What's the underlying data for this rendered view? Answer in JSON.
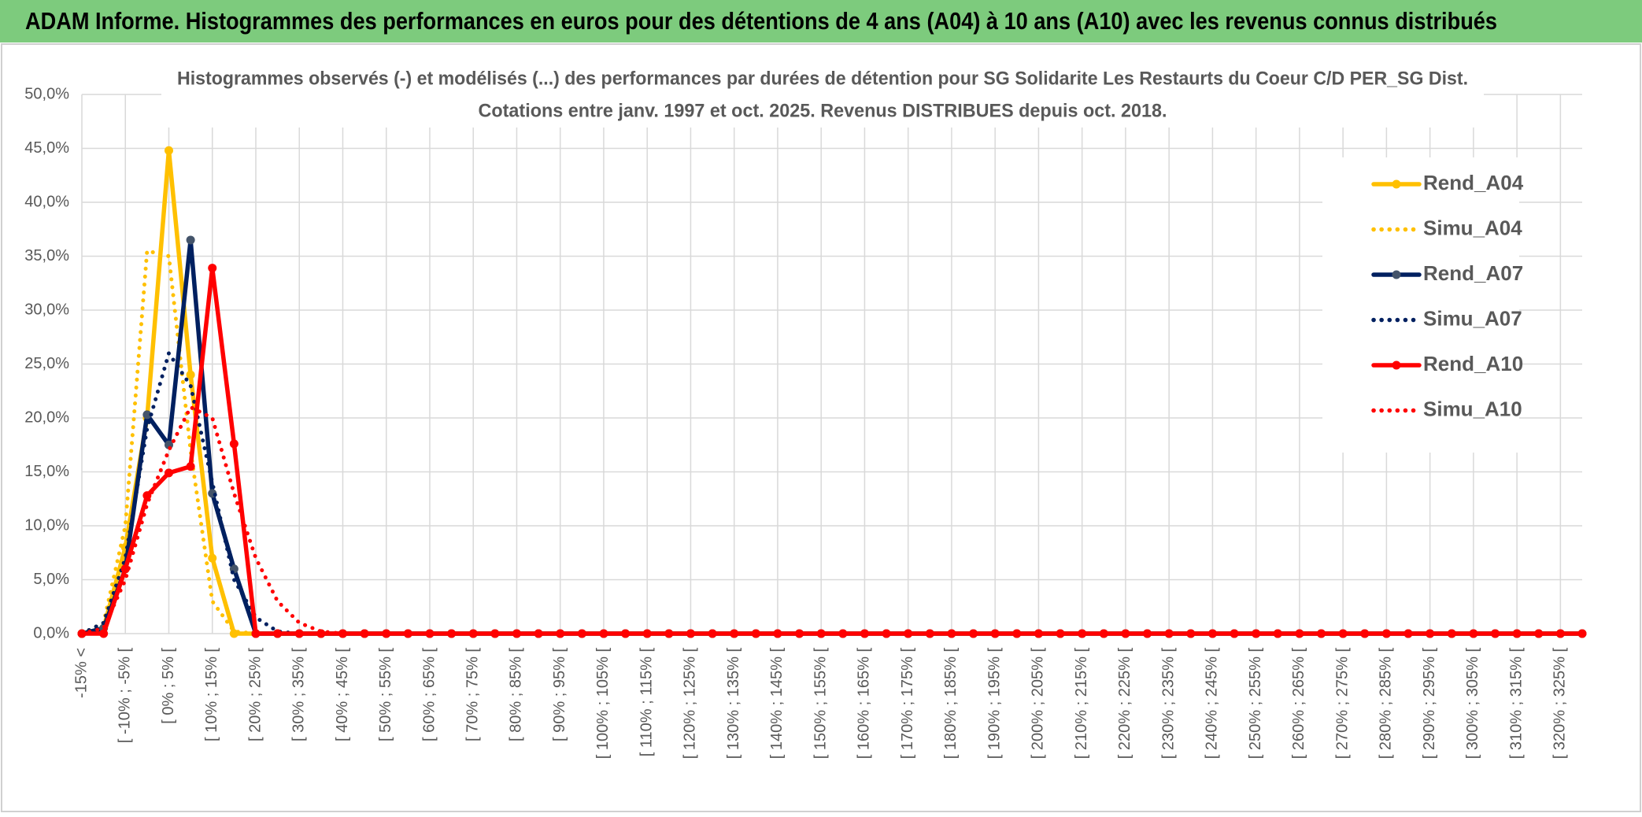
{
  "header": {
    "title": "ADAM Informe. Histogrammes des performances en euros pour des détentions de 4 ans (A04) à 10 ans (A10) avec les revenus connus distribués"
  },
  "chart_data": {
    "type": "line",
    "title": "Histogrammes observés (-) et modélisés (...) des performances par durées de détention pour SG Solidarite Les Restaurts du Coeur C/D PER_SG Dist.",
    "subtitle": "Cotations entre janv. 1997 et oct. 2025. Revenus DISTRIBUES depuis oct. 2018.",
    "categories": [
      "-15% <",
      null,
      "[ -10% ; -5% [",
      null,
      "[ 0% ; 5% [",
      null,
      "[ 10% ; 15% [",
      null,
      "[ 20% ; 25% [",
      null,
      "[ 30% ; 35% [",
      null,
      "[ 40% ; 45% [",
      null,
      "[ 50% ; 55% [",
      null,
      "[ 60% ; 65% [",
      null,
      "[ 70% ; 75% [",
      null,
      "[ 80% ; 85% [",
      null,
      "[ 90% ; 95% [",
      null,
      "[ 100% ; 105% [",
      null,
      "[ 110% ; 115% [",
      null,
      "[ 120% ; 125% [",
      null,
      "[ 130% ; 135% [",
      null,
      "[ 140% ; 145% [",
      null,
      "[ 150% ; 155% [",
      null,
      "[ 160% ; 165% [",
      null,
      "[ 170% ; 175% [",
      null,
      "[ 180% ; 185% [",
      null,
      "[ 190% ; 195% [",
      null,
      "[ 200% ; 205% [",
      null,
      "[ 210% ; 215% [",
      null,
      "[ 220% ; 225% [",
      null,
      "[ 230% ; 235% [",
      null,
      "[ 240% ; 245% [",
      null,
      "[ 250% ; 255% [",
      null,
      "[ 260% ; 265% [",
      null,
      "[ 270% ; 275% [",
      null,
      "[ 280% ; 285% [",
      null,
      "[ 290% ; 295% [",
      null,
      "[ 300% ; 305% [",
      null,
      "[ 310% ; 315% [",
      null,
      "[ 320% ; 325% [",
      null
    ],
    "series": [
      {
        "name": "Rend_A04",
        "color": "#FFC000",
        "dotted": false,
        "markers": true,
        "values": [
          0,
          0.5,
          8,
          20,
          44.8,
          24,
          7,
          0,
          0,
          0,
          0,
          0,
          0,
          0,
          0,
          0,
          0,
          0,
          0,
          0,
          0,
          0,
          0,
          0,
          0,
          0,
          0,
          0,
          0,
          0,
          0,
          0,
          0,
          0,
          0,
          0,
          0,
          0,
          0,
          0,
          0,
          0,
          0,
          0,
          0,
          0,
          0,
          0,
          0,
          0,
          0,
          0,
          0,
          0,
          0,
          0,
          0,
          0,
          0,
          0,
          0,
          0,
          0,
          0,
          0,
          0,
          0,
          0,
          0,
          0
        ]
      },
      {
        "name": "Simu_A04",
        "color": "#FFC000",
        "dotted": true,
        "markers": false,
        "values": [
          0,
          1,
          10,
          35.5,
          35,
          17,
          3,
          0.2,
          0,
          0,
          0,
          0,
          0,
          0,
          0,
          0,
          0,
          0,
          0,
          0,
          0,
          0,
          0,
          0,
          0,
          0,
          0,
          0,
          0,
          0,
          0,
          0,
          0,
          0,
          0,
          0,
          0,
          0,
          0,
          0,
          0,
          0,
          0,
          0,
          0,
          0,
          0,
          0,
          0,
          0,
          0,
          0,
          0,
          0,
          0,
          0,
          0,
          0,
          0,
          0,
          0,
          0,
          0,
          0,
          0,
          0,
          0,
          0,
          0,
          0
        ]
      },
      {
        "name": "Rend_A07",
        "color": "#002060",
        "dotted": false,
        "markers": true,
        "values": [
          0,
          0.5,
          6,
          20.3,
          17.5,
          36.5,
          13,
          6,
          0,
          0,
          0,
          0,
          0,
          0,
          0,
          0,
          0,
          0,
          0,
          0,
          0,
          0,
          0,
          0,
          0,
          0,
          0,
          0,
          0,
          0,
          0,
          0,
          0,
          0,
          0,
          0,
          0,
          0,
          0,
          0,
          0,
          0,
          0,
          0,
          0,
          0,
          0,
          0,
          0,
          0,
          0,
          0,
          0,
          0,
          0,
          0,
          0,
          0,
          0,
          0,
          0,
          0,
          0,
          0,
          0,
          0,
          0,
          0,
          0,
          0
        ]
      },
      {
        "name": "Simu_A07",
        "color": "#002060",
        "dotted": true,
        "markers": false,
        "values": [
          0,
          1,
          7,
          19,
          26,
          23,
          14,
          5,
          1.5,
          0.2,
          0,
          0,
          0,
          0,
          0,
          0,
          0,
          0,
          0,
          0,
          0,
          0,
          0,
          0,
          0,
          0,
          0,
          0,
          0,
          0,
          0,
          0,
          0,
          0,
          0,
          0,
          0,
          0,
          0,
          0,
          0,
          0,
          0,
          0,
          0,
          0,
          0,
          0,
          0,
          0,
          0,
          0,
          0,
          0,
          0,
          0,
          0,
          0,
          0,
          0,
          0,
          0,
          0,
          0,
          0,
          0,
          0,
          0,
          0,
          0
        ]
      },
      {
        "name": "Rend_A10",
        "color": "#FF0000",
        "dotted": false,
        "markers": true,
        "values": [
          0,
          0,
          6,
          12.8,
          14.9,
          15.5,
          33.9,
          17.6,
          0,
          0,
          0,
          0,
          0,
          0,
          0,
          0,
          0,
          0,
          0,
          0,
          0,
          0,
          0,
          0,
          0,
          0,
          0,
          0,
          0,
          0,
          0,
          0,
          0,
          0,
          0,
          0,
          0,
          0,
          0,
          0,
          0,
          0,
          0,
          0,
          0,
          0,
          0,
          0,
          0,
          0,
          0,
          0,
          0,
          0,
          0,
          0,
          0,
          0,
          0,
          0,
          0,
          0,
          0,
          0,
          0,
          0,
          0,
          0,
          0,
          0
        ]
      },
      {
        "name": "Simu_A10",
        "color": "#FF0000",
        "dotted": true,
        "markers": false,
        "values": [
          0,
          0.5,
          5,
          12,
          17,
          21,
          20,
          13,
          7,
          3,
          1,
          0.2,
          0,
          0,
          0,
          0,
          0,
          0,
          0,
          0,
          0,
          0,
          0,
          0,
          0,
          0,
          0,
          0,
          0,
          0,
          0,
          0,
          0,
          0,
          0,
          0,
          0,
          0,
          0,
          0,
          0,
          0,
          0,
          0,
          0,
          0,
          0,
          0,
          0,
          0,
          0,
          0,
          0,
          0,
          0,
          0,
          0,
          0,
          0,
          0,
          0,
          0,
          0,
          0,
          0,
          0,
          0,
          0,
          0,
          0
        ]
      }
    ],
    "ylim": [
      0,
      50
    ],
    "yticks": [
      {
        "value": 0,
        "label": "0,0%"
      },
      {
        "value": 5,
        "label": "5,0%"
      },
      {
        "value": 10,
        "label": "10,0%"
      },
      {
        "value": 15,
        "label": "15,0%"
      },
      {
        "value": 20,
        "label": "20,0%"
      },
      {
        "value": 25,
        "label": "25,0%"
      },
      {
        "value": 30,
        "label": "30,0%"
      },
      {
        "value": 35,
        "label": "35,0%"
      },
      {
        "value": 40,
        "label": "40,0%"
      },
      {
        "value": 45,
        "label": "45,0%"
      },
      {
        "value": 50,
        "label": "50,0%"
      }
    ],
    "grid": true,
    "legend": "right"
  }
}
